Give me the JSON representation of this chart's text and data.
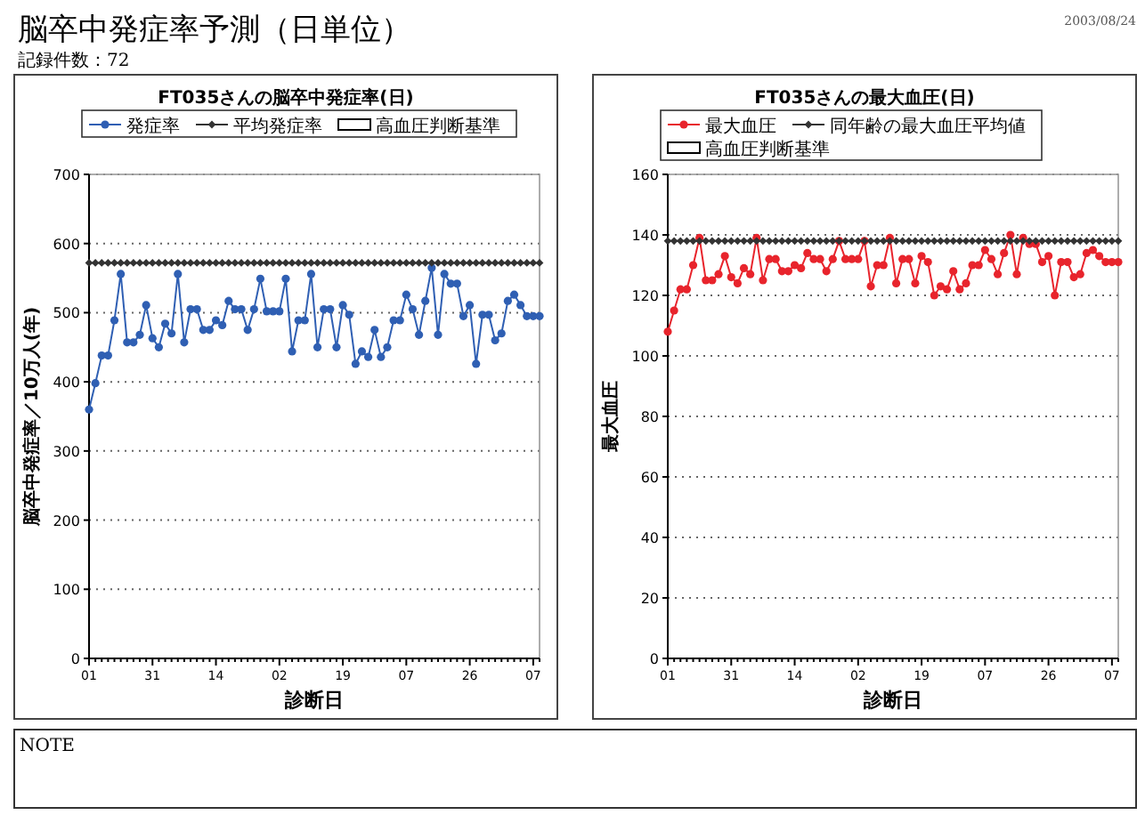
{
  "chart_data": [
    {
      "type": "other",
      "title": "脳卒中発症率予測（日単位）",
      "subtitle": "記録件数：72",
      "annotations": [
        "2003/08/24",
        "NOTE"
      ]
    },
    {
      "type": "line",
      "title": "FT035さんの脳卒中発症率(日)",
      "xlabel": "診断日",
      "ylabel": "脳卒中発症率／10万人(年)",
      "categories": [
        "01",
        null,
        null,
        null,
        null,
        null,
        null,
        null,
        null,
        null,
        "31",
        null,
        null,
        null,
        null,
        null,
        null,
        null,
        null,
        null,
        "14",
        null,
        null,
        null,
        null,
        null,
        null,
        null,
        null,
        null,
        "02",
        null,
        null,
        null,
        null,
        null,
        null,
        null,
        null,
        null,
        "19",
        null,
        null,
        null,
        null,
        null,
        null,
        null,
        null,
        null,
        "07",
        null,
        null,
        null,
        null,
        null,
        null,
        null,
        null,
        null,
        "26",
        null,
        null,
        null,
        null,
        null,
        null,
        null,
        null,
        null,
        "07",
        null
      ],
      "series": [
        {
          "name": "発症率",
          "color": "#2f5fb3",
          "values": [
            360,
            398,
            438,
            438,
            489,
            556,
            457,
            457,
            468,
            511,
            463,
            450,
            484,
            470,
            556,
            457,
            505,
            505,
            475,
            475,
            489,
            482,
            517,
            505,
            505,
            475,
            505,
            549,
            502,
            502,
            502,
            549,
            444,
            489,
            489,
            556,
            450,
            505,
            505,
            450,
            511,
            497,
            426,
            444,
            436,
            475,
            436,
            450,
            489,
            489,
            526,
            505,
            468,
            517,
            565,
            468,
            556,
            542,
            542,
            495,
            511,
            426,
            497,
            497,
            460,
            470,
            517,
            526,
            511,
            495,
            495,
            495
          ]
        },
        {
          "name": "平均発症率",
          "color": "#333333",
          "marker": "diamond",
          "values": [
            572,
            572,
            572,
            572,
            572,
            572,
            572,
            572,
            572,
            572,
            572,
            572,
            572,
            572,
            572,
            572,
            572,
            572,
            572,
            572,
            572,
            572,
            572,
            572,
            572,
            572,
            572,
            572,
            572,
            572,
            572,
            572,
            572,
            572,
            572,
            572,
            572,
            572,
            572,
            572,
            572,
            572,
            572,
            572,
            572,
            572,
            572,
            572,
            572,
            572,
            572,
            572,
            572,
            572,
            572,
            572,
            572,
            572,
            572,
            572,
            572,
            572,
            572,
            572,
            572,
            572,
            572,
            572,
            572,
            572,
            572,
            572
          ]
        },
        {
          "name": "高血圧判断基準",
          "type": "bar",
          "color": "#000000",
          "values": [
            null,
            null,
            null,
            null,
            null,
            null,
            null,
            null,
            null,
            null,
            null,
            null,
            null,
            null,
            null,
            null,
            null,
            null,
            null,
            null,
            null,
            null,
            null,
            null,
            null,
            null,
            null,
            null,
            null,
            null,
            null,
            null,
            null,
            null,
            null,
            null,
            null,
            null,
            null,
            null,
            null,
            null,
            null,
            null,
            null,
            null,
            null,
            null,
            null,
            null,
            null,
            null,
            null,
            null,
            null,
            null,
            null,
            null,
            null,
            null,
            null,
            null,
            null,
            null,
            null,
            null,
            null,
            null,
            null,
            null,
            null,
            null
          ]
        }
      ],
      "ylim": [
        0,
        700
      ],
      "yticks": [
        0,
        100,
        200,
        300,
        400,
        500,
        600,
        700
      ],
      "grid": "y",
      "legend": "top",
      "marker": "circle"
    },
    {
      "type": "line",
      "title": "FT035さんの最大血圧(日)",
      "xlabel": "診断日",
      "ylabel": "最大血圧",
      "categories": [
        "01",
        null,
        null,
        null,
        null,
        null,
        null,
        null,
        null,
        null,
        "31",
        null,
        null,
        null,
        null,
        null,
        null,
        null,
        null,
        null,
        "14",
        null,
        null,
        null,
        null,
        null,
        null,
        null,
        null,
        null,
        "02",
        null,
        null,
        null,
        null,
        null,
        null,
        null,
        null,
        null,
        "19",
        null,
        null,
        null,
        null,
        null,
        null,
        null,
        null,
        null,
        "07",
        null,
        null,
        null,
        null,
        null,
        null,
        null,
        null,
        null,
        "26",
        null,
        null,
        null,
        null,
        null,
        null,
        null,
        null,
        null,
        "07",
        null
      ],
      "series": [
        {
          "name": "最大血圧",
          "color": "#e8242c",
          "values": [
            108,
            115,
            122,
            122,
            130,
            139,
            125,
            125,
            127,
            133,
            126,
            124,
            129,
            127,
            139,
            125,
            132,
            132,
            128,
            128,
            130,
            129,
            134,
            132,
            132,
            128,
            132,
            138,
            132,
            132,
            132,
            138,
            123,
            130,
            130,
            139,
            124,
            132,
            132,
            124,
            133,
            131,
            120,
            123,
            122,
            128,
            122,
            124,
            130,
            130,
            135,
            132,
            127,
            134,
            140,
            127,
            139,
            137,
            137,
            131,
            133,
            120,
            131,
            131,
            126,
            127,
            134,
            135,
            133,
            131,
            131,
            131
          ]
        },
        {
          "name": "同年齢の最大血圧平均値",
          "color": "#333333",
          "marker": "diamond",
          "values": [
            138,
            138,
            138,
            138,
            138,
            138,
            138,
            138,
            138,
            138,
            138,
            138,
            138,
            138,
            138,
            138,
            138,
            138,
            138,
            138,
            138,
            138,
            138,
            138,
            138,
            138,
            138,
            138,
            138,
            138,
            138,
            138,
            138,
            138,
            138,
            138,
            138,
            138,
            138,
            138,
            138,
            138,
            138,
            138,
            138,
            138,
            138,
            138,
            138,
            138,
            138,
            138,
            138,
            138,
            138,
            138,
            138,
            138,
            138,
            138,
            138,
            138,
            138,
            138,
            138,
            138,
            138,
            138,
            138,
            138,
            138,
            138
          ]
        },
        {
          "name": "高血圧判断基準",
          "type": "bar",
          "color": "#000000",
          "values": [
            null,
            null,
            null,
            null,
            null,
            null,
            null,
            null,
            null,
            null,
            null,
            null,
            null,
            null,
            null,
            null,
            null,
            null,
            null,
            null,
            null,
            null,
            null,
            null,
            null,
            null,
            null,
            null,
            null,
            null,
            null,
            null,
            null,
            null,
            null,
            null,
            null,
            null,
            null,
            null,
            null,
            null,
            null,
            null,
            null,
            null,
            null,
            null,
            null,
            null,
            null,
            null,
            null,
            null,
            null,
            null,
            null,
            null,
            null,
            null,
            null,
            null,
            null,
            null,
            null,
            null,
            null,
            null,
            null,
            null,
            null,
            null
          ]
        }
      ],
      "ylim": [
        0,
        160
      ],
      "yticks": [
        0,
        20,
        40,
        60,
        80,
        100,
        120,
        140,
        160
      ],
      "grid": "y",
      "legend": "top",
      "marker": "circle"
    }
  ]
}
